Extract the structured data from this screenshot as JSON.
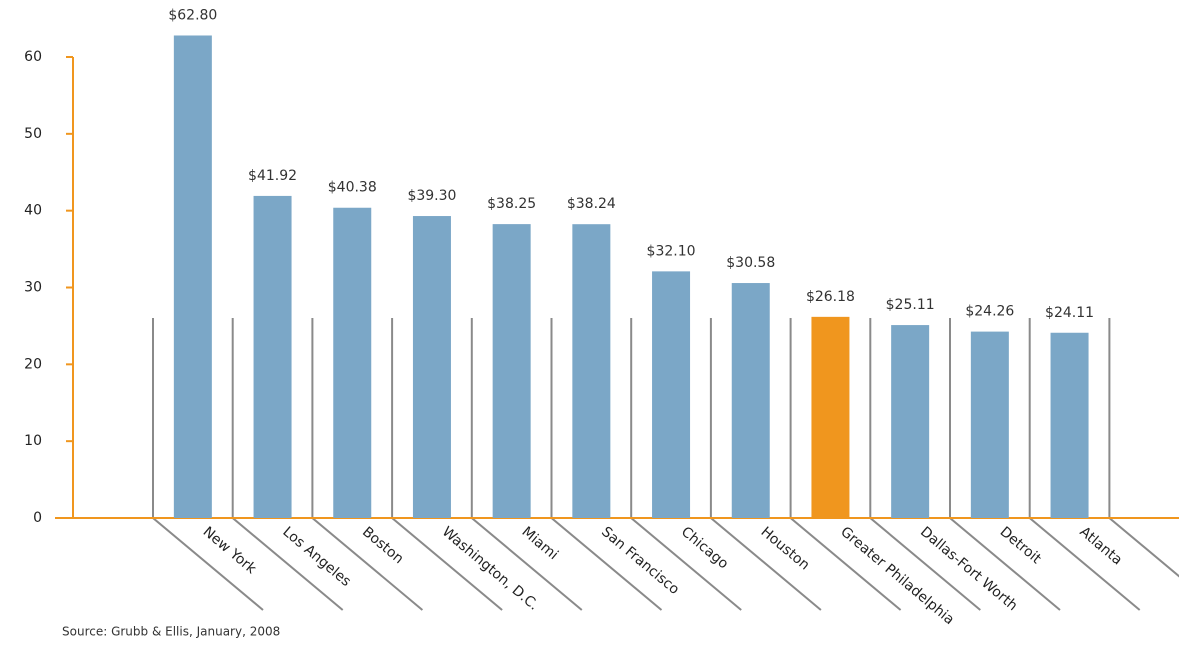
{
  "chart_data": {
    "type": "bar",
    "categories": [
      "New York",
      "Los Angeles",
      "Boston",
      "Washington, D.C.",
      "Miami",
      "San Francisco",
      "Chicago",
      "Houston",
      "Greater Philadelphia",
      "Dallas-Fort Worth",
      "Detroit",
      "Atlanta"
    ],
    "values": [
      62.8,
      41.92,
      40.38,
      39.3,
      38.25,
      38.24,
      32.1,
      30.58,
      26.18,
      25.11,
      24.26,
      24.11
    ],
    "value_labels": [
      "$62.80",
      "$41.92",
      "$40.38",
      "$39.30",
      "$38.25",
      "$38.24",
      "$32.10",
      "$30.58",
      "$26.18",
      "$25.11",
      "$24.26",
      "$24.11"
    ],
    "colors": [
      "#7ba7c7",
      "#7ba7c7",
      "#7ba7c7",
      "#7ba7c7",
      "#7ba7c7",
      "#7ba7c7",
      "#7ba7c7",
      "#7ba7c7",
      "#f0961e",
      "#7ba7c7",
      "#7ba7c7",
      "#7ba7c7"
    ],
    "ylim": [
      0,
      60
    ],
    "yticks": [
      0,
      10,
      20,
      30,
      40,
      50,
      60
    ],
    "source": "Source: Grubb & Ellis, January, 2008"
  }
}
